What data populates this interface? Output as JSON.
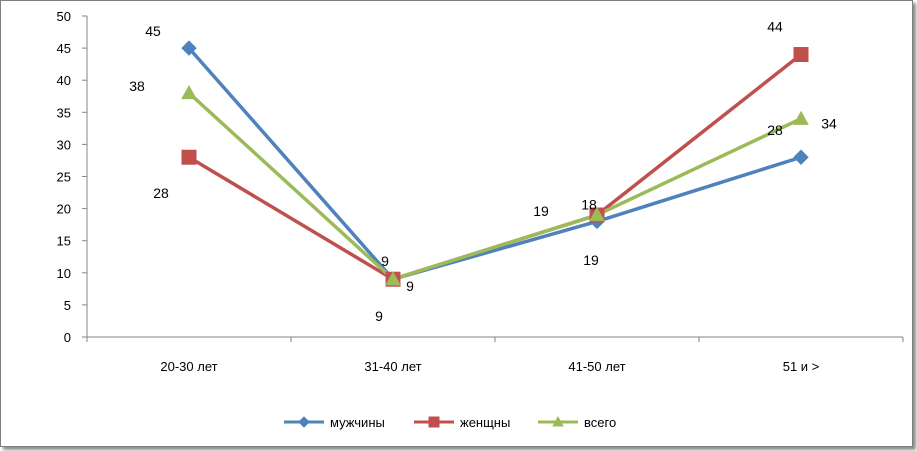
{
  "chart_data": {
    "type": "line",
    "categories": [
      "20-30 лет",
      "31-40 лет",
      "41-50 лет",
      "51 и >"
    ],
    "series": [
      {
        "name": "мужчины",
        "values": [
          45,
          9,
          18,
          28
        ],
        "color": "#4f81bd",
        "marker": "diamond"
      },
      {
        "name": "женщны",
        "values": [
          28,
          9,
          19,
          44
        ],
        "color": "#c0504d",
        "marker": "square"
      },
      {
        "name": "всего",
        "values": [
          38,
          9,
          19,
          34
        ],
        "color": "#9bbb59",
        "marker": "triangle"
      }
    ],
    "ylim": [
      0,
      50
    ],
    "yticks": [
      0,
      5,
      10,
      15,
      20,
      25,
      30,
      35,
      40,
      45,
      50
    ],
    "grid": false,
    "legend": "bottom",
    "title": "",
    "xlabel": "",
    "ylabel": ""
  }
}
